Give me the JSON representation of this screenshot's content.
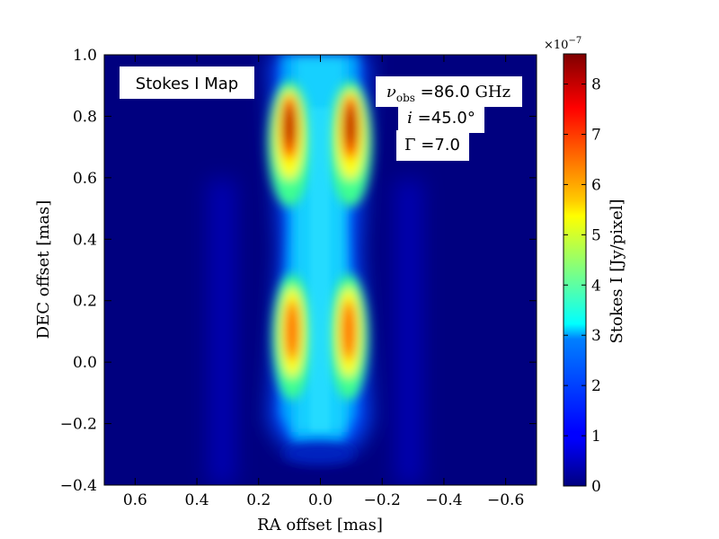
{
  "chart_data": {
    "type": "heatmap",
    "title": "",
    "xlabel": "RA offset [mas]",
    "ylabel": "DEC offset [mas]",
    "xlim": [
      0.7,
      -0.7
    ],
    "ylim": [
      -0.4,
      1.0
    ],
    "x_ticks": [
      0.6,
      0.4,
      0.2,
      0.0,
      -0.2,
      -0.4,
      -0.6
    ],
    "x_tick_labels": [
      "0.6",
      "0.4",
      "0.2",
      "0.0",
      "−0.2",
      "−0.4",
      "−0.6"
    ],
    "y_ticks": [
      -0.4,
      -0.2,
      0.0,
      0.2,
      0.4,
      0.6,
      0.8,
      1.0
    ],
    "y_tick_labels": [
      "−0.4",
      "−0.2",
      "0.0",
      "0.2",
      "0.4",
      "0.6",
      "0.8",
      "1.0"
    ],
    "colormap": "jet",
    "colorbar": {
      "label": "Stokes I [Jy/pixel]",
      "range": [
        0,
        8.6
      ],
      "ticks": [
        0,
        1,
        2,
        3,
        4,
        5,
        6,
        7,
        8
      ],
      "tick_labels": [
        "0",
        "1",
        "2",
        "3",
        "4",
        "5",
        "6",
        "7",
        "8"
      ],
      "multiplier_base": "×10",
      "multiplier_exp": "−7"
    },
    "annotations": {
      "map_label": "Stokes I Map",
      "nu_symbol": "ν",
      "nu_sub": "obs",
      "nu_value": " =86.0",
      "nu_unit": " GHz",
      "inc_symbol": "i",
      "inc_value": " =45.0°",
      "gamma_symbol": "Γ",
      "gamma_value": " =7.0"
    },
    "features": [
      {
        "type": "hotspot",
        "x": 0.1,
        "y": 0.76,
        "peak": 8.6
      },
      {
        "type": "hotspot",
        "x": -0.1,
        "y": 0.76,
        "peak": 8.6
      },
      {
        "type": "hotspot",
        "x": 0.1,
        "y": 0.08,
        "peak": 7.0
      },
      {
        "type": "hotspot",
        "x": -0.1,
        "y": 0.08,
        "peak": 7.0
      }
    ],
    "grid": false
  }
}
